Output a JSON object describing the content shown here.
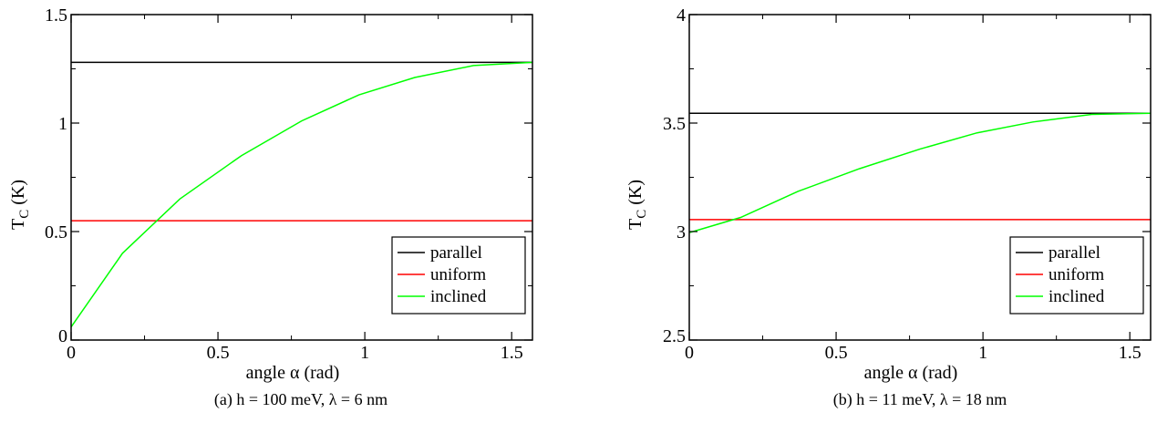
{
  "chart_data": [
    {
      "type": "line",
      "xlabel": "angle α (rad)",
      "ylabel": "T",
      "ylabel_sub": "C",
      "ylabel_unit": " (K)",
      "xlim": [
        0,
        1.5708
      ],
      "ylim": [
        0,
        1.5
      ],
      "xticks": [
        0,
        0.5,
        1,
        1.5
      ],
      "xtick_labels": [
        "0",
        "0.5",
        "1",
        "1.5"
      ],
      "yticks": [
        0,
        0.5,
        1,
        1.5
      ],
      "ytick_labels": [
        "0",
        "0.5",
        "1",
        "1.5"
      ],
      "grid": false,
      "legend_position": "bottom-right",
      "caption": "(a) h = 100 meV, λ = 6 nm",
      "series": [
        {
          "name": "parallel",
          "color": "#000000",
          "x": [
            0,
            1.5708
          ],
          "y": [
            1.28,
            1.28
          ]
        },
        {
          "name": "uniform",
          "color": "#ff0000",
          "x": [
            0,
            1.5708
          ],
          "y": [
            0.55,
            0.55
          ]
        },
        {
          "name": "inclined",
          "color": "#00ff00",
          "x": [
            0,
            0.175,
            0.37,
            0.58,
            0.785,
            0.98,
            1.17,
            1.37,
            1.5708
          ],
          "y": [
            0.06,
            0.4,
            0.65,
            0.85,
            1.01,
            1.13,
            1.21,
            1.265,
            1.28
          ]
        }
      ]
    },
    {
      "type": "line",
      "xlabel": "angle α (rad)",
      "ylabel": "T",
      "ylabel_sub": "C",
      "ylabel_unit": " (K)",
      "xlim": [
        0,
        1.5708
      ],
      "ylim": [
        2.5,
        4
      ],
      "xticks": [
        0,
        0.5,
        1,
        1.5
      ],
      "xtick_labels": [
        "0",
        "0.5",
        "1",
        "1.5"
      ],
      "yticks": [
        2.5,
        3,
        3.5,
        4
      ],
      "ytick_labels": [
        "2.5",
        "3",
        "3.5",
        "4"
      ],
      "grid": false,
      "legend_position": "bottom-right",
      "caption": "(b) h = 11 meV, λ = 18 nm",
      "series": [
        {
          "name": "parallel",
          "color": "#000000",
          "x": [
            0,
            1.5708
          ],
          "y": [
            3.545,
            3.545
          ]
        },
        {
          "name": "uniform",
          "color": "#ff0000",
          "x": [
            0,
            1.5708
          ],
          "y": [
            3.055,
            3.055
          ]
        },
        {
          "name": "inclined",
          "color": "#00ff00",
          "x": [
            0,
            0.175,
            0.37,
            0.58,
            0.785,
            0.98,
            1.17,
            1.37,
            1.5708
          ],
          "y": [
            2.995,
            3.065,
            3.185,
            3.29,
            3.38,
            3.455,
            3.505,
            3.54,
            3.545
          ]
        }
      ]
    }
  ]
}
